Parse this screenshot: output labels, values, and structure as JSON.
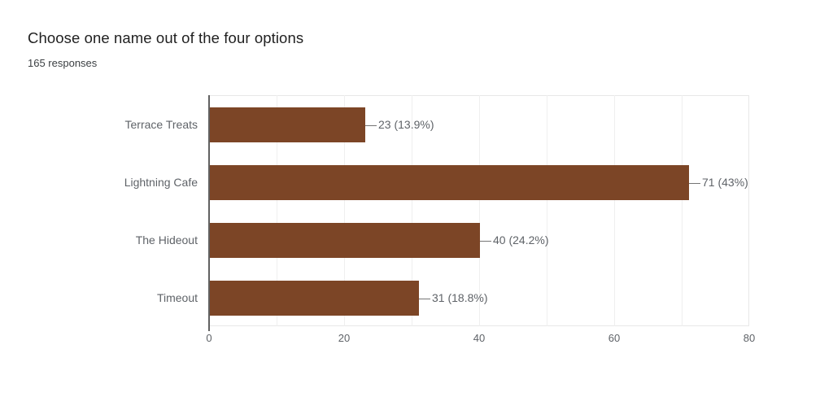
{
  "chart_data": {
    "type": "bar",
    "orientation": "horizontal",
    "title": "Choose one name out of the four options",
    "subtitle": "165 responses",
    "categories": [
      "Terrace Treats",
      "Lightning Cafe",
      "The Hideout",
      "Timeout"
    ],
    "values": [
      23,
      71,
      40,
      31
    ],
    "percentages": [
      13.9,
      43,
      24.2,
      18.8
    ],
    "value_labels": [
      "23 (13.9%)",
      "71 (43%)",
      "40 (24.2%)",
      "31 (18.8%)"
    ],
    "x_ticks": [
      "0",
      "20",
      "40",
      "60",
      "80"
    ],
    "xlim": [
      0,
      80
    ],
    "x_gridline_step": 10,
    "grid": true,
    "legend": false,
    "colors": {
      "bar": "#7C4526",
      "title_text": "#212121",
      "subtitle_text": "#3C4043",
      "label_text": "#5F6368",
      "axis_line": "#616161",
      "gridline": "#EFEFEF",
      "plot_border": "#E8E8E8",
      "connector": "#757575"
    }
  }
}
